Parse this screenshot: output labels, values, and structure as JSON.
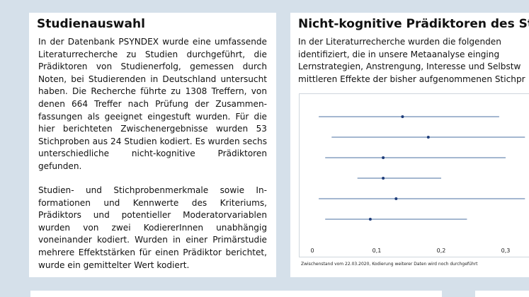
{
  "left_panel": {
    "title": "Studienauswahl",
    "paragraph1": "In der Datenbank PSYNDEX wurde eine umfassende Literaturrecherche zu Studien durchgeführt, die Prädiktoren von Studienerfolg, gemessen durch Noten, bei Studierenden in Deutschland untersucht haben. Die Recherche führte zu 1308 Treffern, von denen 664 Treffer nach Prüfung der Zusammen-fassungen als geeignet eingestuft wurden. Für die hier berichteten Zwischenergebnisse wurden 53 Stichproben aus 24 Studien kodiert. Es wurden sechs unterschiedliche nicht-kognitive Prädiktoren gefunden.",
    "paragraph2": "Studien- und Stichprobenmerkmale sowie In-formationen und Kennwerte des Kriteriums, Prädiktors und potentieller Moderatorvariablen wurden von zwei KodiererInnen unabhängig voneinander kodiert. Wurden in einer Primärstudie mehrere Effektstärken für einen Prädiktor berichtet, wurde ein gemittelter Wert kodiert."
  },
  "right_panel": {
    "title": "Nicht-kognitive Prädiktoren des St",
    "intro_lines": [
      "In der Literaturrecherche wurden die folgenden",
      "identifiziert, die in unsere Metaanalyse einging",
      "Lernstrategien, Anstrengung, Interesse und Selbstw",
      "mittleren Effekte der bisher aufgenommenen Stichpr"
    ],
    "note": "Zwischenstand vom 22.03.2020, Kodierung weiterer Daten wird noch durchgeführt"
  },
  "chart_data": {
    "type": "scatter",
    "subtype": "forest-plot",
    "x_ticks": [
      "0",
      "0,1",
      "0,2",
      "0,3"
    ],
    "xlim": [
      0,
      0.33
    ],
    "series": [
      {
        "name": "effect-1",
        "estimate": 0.14,
        "ci": [
          0.01,
          0.29
        ]
      },
      {
        "name": "effect-2",
        "estimate": 0.18,
        "ci": [
          0.03,
          0.33
        ]
      },
      {
        "name": "effect-3",
        "estimate": 0.11,
        "ci": [
          0.02,
          0.3
        ]
      },
      {
        "name": "effect-4",
        "estimate": 0.11,
        "ci": [
          0.07,
          0.2
        ]
      },
      {
        "name": "effect-5",
        "estimate": 0.13,
        "ci": [
          0.01,
          0.33
        ]
      },
      {
        "name": "effect-6",
        "estimate": 0.09,
        "ci": [
          0.02,
          0.24
        ]
      }
    ],
    "colors": {
      "line": "#4a6fa0",
      "point": "#1f3d7a",
      "axis": "#bfc5cc"
    }
  }
}
